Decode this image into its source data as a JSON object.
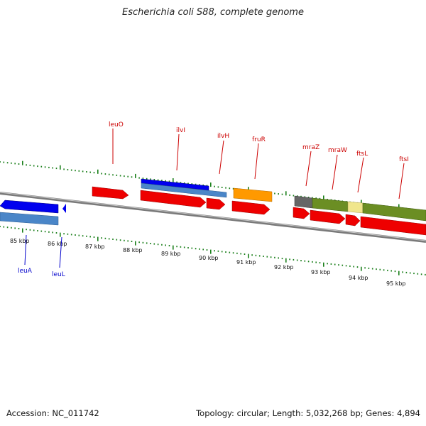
{
  "title": "Escherichia coli S88, complete genome",
  "accession": "Accession: NC_011742",
  "summary": "Topology: circular; Length: 5,032,268 bp; Genes: 4,894",
  "colors": {
    "label_red": "#cc0000",
    "label_blue": "#0000cc",
    "tick_green": "#1a7f1a",
    "backbone": "#808080",
    "forward_gene": "#0000ee",
    "forward_feature": "#4a86c8",
    "cds": "#ee0000",
    "fruR_bar": "#ff9900",
    "mraZ_bar": "#666666",
    "mraW_bar": "#6b8e23",
    "ftsL_bar": "#f0e68c",
    "ftsI_bar": "#6b8e23"
  },
  "tick_labels": [
    "85 kbp",
    "86 kbp",
    "87 kbp",
    "88 kbp",
    "89 kbp",
    "90 kbp",
    "91 kbp",
    "92 kbp",
    "93 kbp",
    "94 kbp",
    "95 kbp"
  ],
  "upper_genes": [
    "leuO",
    "ilvI",
    "ilvH",
    "fruR",
    "mraZ",
    "mraW",
    "ftsL",
    "ftsI"
  ],
  "lower_genes": [
    "leuA",
    "leuL"
  ]
}
